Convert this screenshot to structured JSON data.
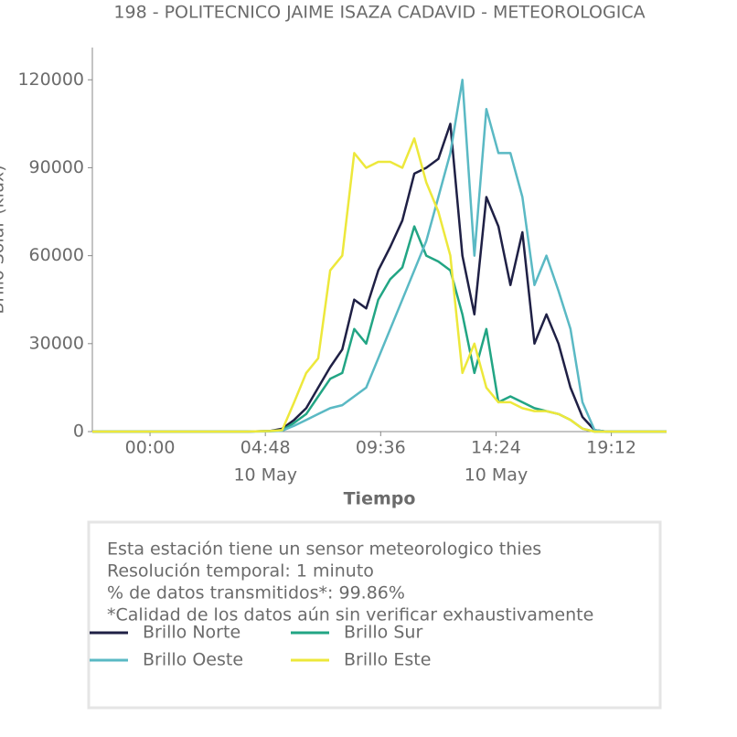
{
  "chart_data": {
    "type": "line",
    "title": "198 - POLITECNICO JAIME ISAZA CADAVID - METEOROLOGICA",
    "x_label": "Tiempo",
    "y_label": "Brillo Solar (klux)",
    "x": [
      -2.4,
      0,
      2,
      4,
      5,
      5.5,
      6,
      6.5,
      7,
      7.5,
      8,
      8.5,
      9,
      9.5,
      10,
      10.5,
      11,
      11.5,
      12,
      12.5,
      13,
      13.5,
      14,
      14.5,
      15,
      15.5,
      16,
      16.5,
      17,
      17.5,
      18,
      18.5,
      19,
      20,
      21.5
    ],
    "series": [
      {
        "name": "Brillo Norte",
        "color": "#1f2045",
        "values": [
          0,
          0,
          0,
          0,
          200,
          1000,
          4000,
          8000,
          15000,
          22000,
          28000,
          45000,
          42000,
          55000,
          63000,
          72000,
          88000,
          90000,
          93000,
          105000,
          60000,
          40000,
          80000,
          70000,
          50000,
          68000,
          30000,
          40000,
          30000,
          15000,
          5000,
          500,
          0,
          0,
          0
        ]
      },
      {
        "name": "Brillo Sur",
        "color": "#22a584",
        "values": [
          0,
          0,
          0,
          0,
          200,
          500,
          3000,
          6000,
          12000,
          18000,
          20000,
          35000,
          30000,
          45000,
          52000,
          56000,
          70000,
          60000,
          58000,
          55000,
          40000,
          20000,
          35000,
          10000,
          12000,
          10000,
          8000,
          7000,
          6000,
          4000,
          1000,
          0,
          0,
          0,
          0
        ]
      },
      {
        "name": "Brillo Oeste",
        "color": "#5ab9c4",
        "values": [
          0,
          0,
          0,
          0,
          100,
          300,
          2000,
          4000,
          6000,
          8000,
          9000,
          12000,
          15000,
          25000,
          35000,
          45000,
          55000,
          65000,
          80000,
          95000,
          120000,
          60000,
          110000,
          95000,
          95000,
          80000,
          50000,
          60000,
          48000,
          35000,
          10000,
          500,
          0,
          0,
          0
        ]
      },
      {
        "name": "Brillo Este",
        "color": "#ede83b",
        "values": [
          0,
          0,
          0,
          0,
          200,
          500,
          10000,
          20000,
          25000,
          55000,
          60000,
          95000,
          90000,
          92000,
          92000,
          90000,
          100000,
          85000,
          75000,
          60000,
          20000,
          30000,
          15000,
          10000,
          10000,
          8000,
          7000,
          7000,
          6000,
          4000,
          1000,
          0,
          0,
          0,
          0
        ]
      }
    ],
    "xlim": [
      -2.4,
      21.5
    ],
    "xticks": [
      {
        "value": 0,
        "label": "00:00"
      },
      {
        "value": 4.8,
        "label": "04:48",
        "date": "10 May"
      },
      {
        "value": 9.6,
        "label": "09:36"
      },
      {
        "value": 14.4,
        "label": "14:24",
        "date": "10 May"
      },
      {
        "value": 19.2,
        "label": "19:12"
      }
    ],
    "ylim": [
      0,
      131000
    ],
    "yticks": [
      0,
      30000,
      60000,
      90000,
      120000
    ],
    "annotations": [
      "Esta estación tiene un sensor meteorologico thies",
      "Resolución temporal: 1 minuto",
      "% de datos transmitidos*: 99.86%",
      "*Calidad de los datos aún sin verificar exhaustivamente"
    ]
  }
}
